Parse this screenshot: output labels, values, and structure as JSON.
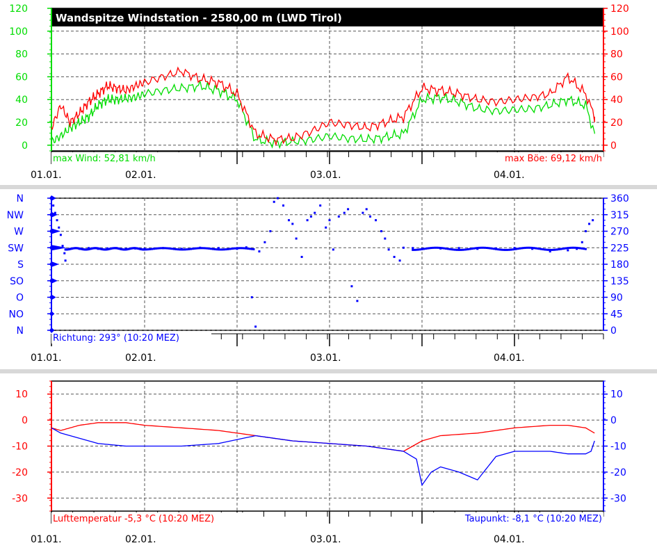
{
  "colors": {
    "green": "#00dd00",
    "red": "#ff0000",
    "blue": "#0000ff",
    "axis_black": "#000000",
    "grid": "#555555",
    "separator": "#d8d8d8"
  },
  "date_labels": [
    "01.01.",
    "02.01.",
    "03.01.",
    "04.01."
  ],
  "chart_data": [
    {
      "type": "line",
      "title": "Wandspitze Windstation - 2580,00 m (LWD Tirol)",
      "x_range_days": [
        0,
        3.5
      ],
      "left_ticks": [
        "120",
        "100",
        "80",
        "60",
        "40",
        "20",
        "0"
      ],
      "right_ticks": [
        "120",
        "100",
        "80",
        "60",
        "40",
        "20",
        "0"
      ],
      "ylim": [
        -5,
        120
      ],
      "footer_left": "max Wind: 52,81 km/h",
      "footer_right": "max Böe: 69,12 km/h",
      "series": [
        {
          "color": "#00dd00",
          "x": [
            0,
            0.1,
            0.2,
            0.3,
            0.4,
            0.5,
            0.6,
            0.7,
            0.8,
            0.9,
            1.0,
            1.1,
            1.2,
            1.3,
            1.4,
            1.5,
            1.6,
            1.7,
            1.8,
            1.9,
            2.0,
            2.1,
            2.2,
            2.3,
            2.4,
            2.5,
            2.6,
            2.7,
            2.8,
            2.9,
            3.0,
            3.1,
            3.2,
            3.3,
            3.4,
            3.45
          ],
          "values": [
            3,
            8,
            15,
            20,
            25,
            35,
            40,
            40,
            41,
            42,
            45,
            48,
            50,
            52,
            48,
            40,
            5,
            2,
            3,
            5,
            8,
            6,
            5,
            7,
            10,
            40,
            42,
            38,
            32,
            30,
            31,
            32,
            35,
            40,
            35,
            10
          ]
        },
        {
          "color": "#ff0000",
          "x": [
            0,
            0.1,
            0.2,
            0.3,
            0.4,
            0.5,
            0.6,
            0.7,
            0.8,
            0.9,
            1.0,
            1.1,
            1.2,
            1.3,
            1.4,
            1.5,
            1.6,
            1.7,
            1.8,
            1.9,
            2.0,
            2.1,
            2.2,
            2.3,
            2.4,
            2.5,
            2.6,
            2.7,
            2.8,
            2.9,
            3.0,
            3.1,
            3.2,
            3.3,
            3.4,
            3.45
          ],
          "values": [
            15,
            35,
            20,
            28,
            38,
            45,
            52,
            50,
            48,
            52,
            55,
            60,
            65,
            58,
            55,
            45,
            10,
            5,
            6,
            12,
            20,
            18,
            15,
            20,
            25,
            50,
            48,
            45,
            40,
            38,
            40,
            42,
            45,
            60,
            45,
            25
          ]
        }
      ]
    },
    {
      "type": "scatter",
      "x_range_days": [
        0,
        3.5
      ],
      "left_ticks": [
        "N",
        "NW",
        "W",
        "SW",
        "S",
        "SO",
        "O",
        "NO",
        "N"
      ],
      "right_ticks": [
        "360",
        "315",
        "270",
        "225",
        "180",
        "135",
        "90",
        "45",
        "0"
      ],
      "ylim": [
        0,
        360
      ],
      "footer_left": "Richtung: 293° (10:20 MEZ)",
      "wind_rose_lengths": [
        0.3,
        0.4,
        0.6,
        1.0,
        0.5,
        0.4,
        0.3,
        0.2,
        0.2
      ],
      "series": [
        {
          "color": "#0000ff",
          "x": [
            0.02,
            0.04,
            0.06,
            0.08,
            0.1,
            0.12,
            0.14,
            0.15,
            0.2,
            0.3,
            0.4,
            0.5,
            0.6,
            0.7,
            0.8,
            0.9,
            1.0,
            1.1,
            1.2,
            1.3,
            1.4,
            1.5,
            1.55,
            1.58,
            1.6,
            1.62,
            1.65,
            1.68,
            1.7,
            1.72,
            1.75,
            1.78,
            1.8,
            1.82,
            1.85,
            1.88,
            1.9,
            1.92,
            1.95,
            1.98,
            2.0,
            2.02,
            2.05,
            2.08,
            2.1,
            2.12,
            2.15,
            2.18,
            2.2,
            2.22,
            2.25,
            2.28,
            2.3,
            2.32,
            2.35,
            2.38,
            2.4,
            2.45,
            2.5,
            2.6,
            2.7,
            2.8,
            2.9,
            3.0,
            3.1,
            3.2,
            3.3,
            3.35,
            3.38,
            3.4,
            3.42,
            3.44
          ],
          "values": [
            340,
            320,
            300,
            280,
            260,
            230,
            210,
            190,
            222,
            222,
            224,
            222,
            223,
            224,
            222,
            223,
            222,
            224,
            222,
            225,
            224,
            222,
            226,
            90,
            10,
            215,
            240,
            270,
            350,
            360,
            340,
            300,
            290,
            250,
            200,
            300,
            310,
            320,
            340,
            280,
            300,
            220,
            310,
            320,
            330,
            120,
            80,
            320,
            330,
            310,
            300,
            270,
            250,
            220,
            200,
            190,
            225,
            224,
            222,
            223,
            224,
            222,
            223,
            224,
            222,
            215,
            218,
            222,
            240,
            270,
            290,
            300
          ]
        }
      ]
    },
    {
      "type": "line",
      "x_range_days": [
        0,
        3.5
      ],
      "left_ticks": [
        "10",
        "0",
        "-10",
        "-20",
        "-30"
      ],
      "right_ticks": [
        "10",
        "0",
        "-10",
        "-20",
        "-30"
      ],
      "ylim": [
        -35,
        15
      ],
      "footer_left": "Lufttemperatur -5,3 °C (10:20 MEZ)",
      "footer_right": "Taupunkt: -8,1 °C (10:20 MEZ)",
      "series": [
        {
          "color": "#ff0000",
          "x": [
            0,
            0.1,
            0.3,
            0.5,
            0.8,
            1.0,
            1.2,
            1.4,
            1.6,
            1.8,
            2.0,
            2.2,
            2.4,
            2.5,
            2.6,
            2.8,
            3.0,
            3.2,
            3.3,
            3.4,
            3.45
          ],
          "values": [
            -3,
            -4,
            -2,
            -1,
            -1,
            -2,
            -3,
            -4,
            -6,
            -8,
            -9,
            -10,
            -12,
            -8,
            -6,
            -5,
            -3,
            -2,
            -2,
            -3,
            -5
          ]
        },
        {
          "color": "#0000ff",
          "x": [
            0,
            0.1,
            0.3,
            0.5,
            0.8,
            1.0,
            1.2,
            1.4,
            1.6,
            1.8,
            2.0,
            2.2,
            2.4,
            2.47,
            2.5,
            2.55,
            2.6,
            2.7,
            2.8,
            2.9,
            3.0,
            3.2,
            3.3,
            3.4,
            3.43,
            3.45
          ],
          "values": [
            -3,
            -5,
            -7,
            -9,
            -10,
            -10,
            -10,
            -9,
            -6,
            -8,
            -9,
            -10,
            -12,
            -15,
            -25,
            -20,
            -18,
            -20,
            -23,
            -14,
            -12,
            -12,
            -13,
            -13,
            -12,
            -8
          ]
        }
      ]
    }
  ]
}
